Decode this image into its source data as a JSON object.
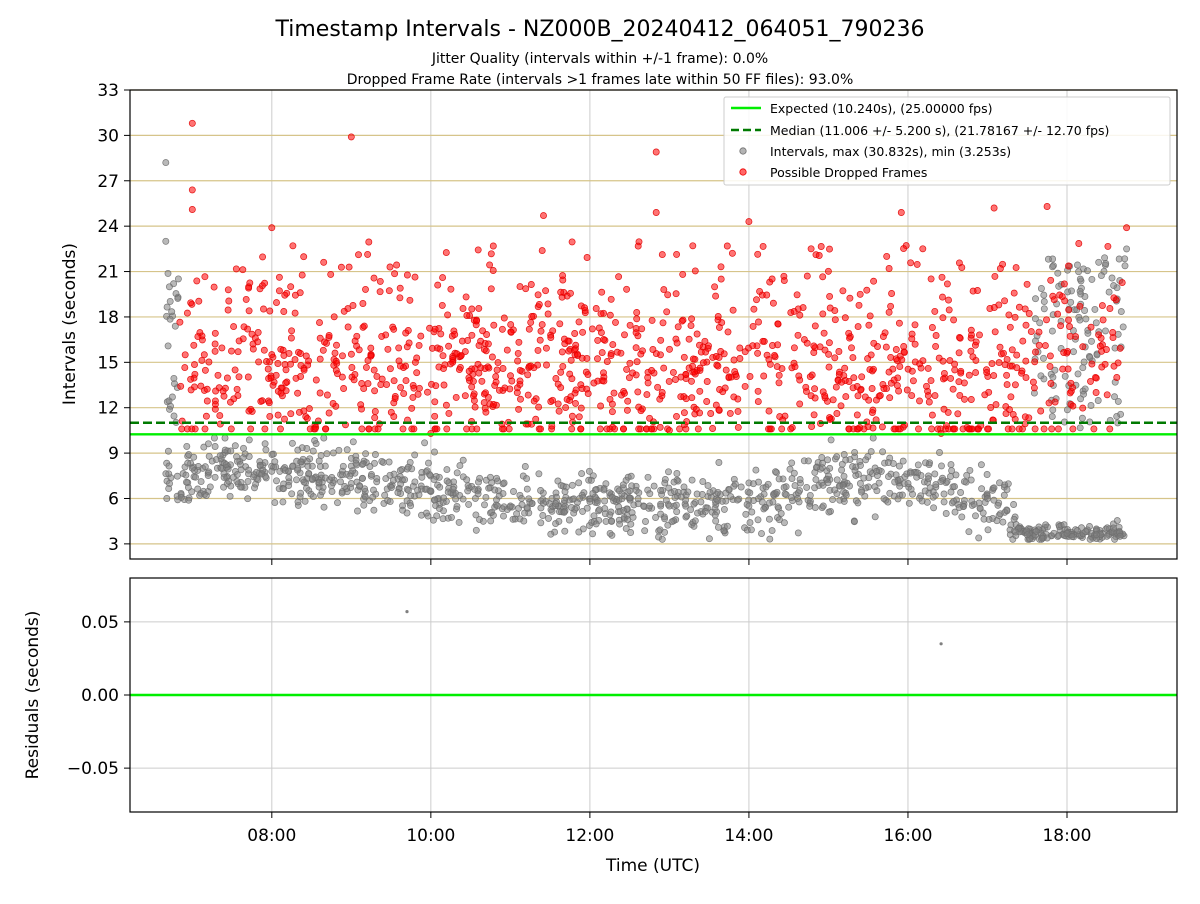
{
  "figure": {
    "title": "Timestamp Intervals - NZ000B_20240412_064051_790236",
    "subtitle_1": "Jitter Quality (intervals within +/-1 frame): 0.0%",
    "subtitle_2": "Dropped Frame Rate (intervals >1 frames late within 50 FF files): 93.0%"
  },
  "colors": {
    "expected": "#00ee00",
    "median": "#007a00",
    "intervals": "#808080",
    "dropped": "#ff0000",
    "grid_main": "#d6c48a",
    "grid_light": "#cccccc"
  },
  "chart_data": [
    {
      "type": "scatter",
      "panel": "intervals",
      "ylabel": "Intervals (seconds)",
      "xlim": [
        "06:13",
        "19:23"
      ],
      "ylim": [
        2,
        33
      ],
      "yticks": [
        3,
        6,
        9,
        12,
        15,
        18,
        21,
        24,
        27,
        30,
        33
      ],
      "xticks": [
        "08:00",
        "10:00",
        "12:00",
        "14:00",
        "16:00",
        "18:00"
      ],
      "legend_position": "top-right",
      "grid": "horizontal",
      "reference_lines": [
        {
          "name": "Expected (10.240s), (25.00000 fps)",
          "y": 10.24,
          "style": "solid"
        },
        {
          "name": "Median (11.006 +/- 5.200 s), (21.78167 +/- 12.70 fps)",
          "y": 11.006,
          "style": "dashed"
        }
      ],
      "series": [
        {
          "name": "Intervals, max (30.832s), min (3.253s)",
          "x_range": [
            "06:40",
            "18:45"
          ],
          "y_min": 3.253,
          "y_max": 30.832,
          "typical_band": [
            3.5,
            10.2
          ],
          "representative_points": [
            {
              "x": "06:40",
              "y": 28.2
            },
            {
              "x": "06:40",
              "y": 23.0
            },
            {
              "x": "07:00",
              "y": 8.0
            },
            {
              "x": "08:00",
              "y": 7.8
            },
            {
              "x": "09:00",
              "y": 7.0
            },
            {
              "x": "10:00",
              "y": 6.5
            },
            {
              "x": "11:00",
              "y": 5.5
            },
            {
              "x": "12:00",
              "y": 5.8
            },
            {
              "x": "13:00",
              "y": 5.5
            },
            {
              "x": "14:00",
              "y": 5.5
            },
            {
              "x": "15:00",
              "y": 7.5
            },
            {
              "x": "16:00",
              "y": 7.0
            },
            {
              "x": "17:00",
              "y": 6.0
            },
            {
              "x": "17:30",
              "y": 3.6
            },
            {
              "x": "18:00",
              "y": 3.7
            },
            {
              "x": "18:40",
              "y": 3.5
            },
            {
              "x": "18:45",
              "y": 22.5
            },
            {
              "x": "18:10",
              "y": 20.5
            }
          ]
        },
        {
          "name": "Possible Dropped Frames",
          "x_range": [
            "06:50",
            "18:45"
          ],
          "typical_band": [
            10.5,
            21.0
          ],
          "representative_points": [
            {
              "x": "07:00",
              "y": 30.8
            },
            {
              "x": "09:00",
              "y": 29.9
            },
            {
              "x": "12:50",
              "y": 28.9
            },
            {
              "x": "07:00",
              "y": 26.4
            },
            {
              "x": "07:00",
              "y": 25.1
            },
            {
              "x": "11:25",
              "y": 24.7
            },
            {
              "x": "12:50",
              "y": 24.9
            },
            {
              "x": "15:55",
              "y": 24.9
            },
            {
              "x": "17:05",
              "y": 25.2
            },
            {
              "x": "17:45",
              "y": 25.3
            },
            {
              "x": "14:00",
              "y": 24.3
            },
            {
              "x": "08:00",
              "y": 23.9
            },
            {
              "x": "18:45",
              "y": 23.9
            },
            {
              "x": "16:25",
              "y": 10.3
            },
            {
              "x": "13:00",
              "y": 10.5
            },
            {
              "x": "10:00",
              "y": 10.3
            }
          ]
        }
      ]
    },
    {
      "type": "scatter",
      "panel": "residuals",
      "xlabel": "Time (UTC)",
      "ylabel": "Residuals (seconds)",
      "ylim": [
        -0.08,
        0.08
      ],
      "yticks": [
        "0.05",
        "0.00",
        "−0.05"
      ],
      "ytick_values": [
        0.05,
        0.0,
        -0.05
      ],
      "xticks": [
        "08:00",
        "10:00",
        "12:00",
        "14:00",
        "16:00",
        "18:00"
      ],
      "reference_line": 0.0,
      "points": [
        {
          "x": "09:42",
          "y": 0.057
        },
        {
          "x": "16:25",
          "y": 0.035
        }
      ]
    }
  ],
  "legend": {
    "items": [
      {
        "label": "Expected (10.240s), (25.00000 fps)",
        "kind": "solid"
      },
      {
        "label": "Median (11.006 +/- 5.200 s), (21.78167 +/- 12.70 fps)",
        "kind": "dashed"
      },
      {
        "label": "Intervals, max (30.832s), min (3.253s)",
        "kind": "gray-dot"
      },
      {
        "label": "Possible Dropped Frames",
        "kind": "red-dot"
      }
    ]
  }
}
